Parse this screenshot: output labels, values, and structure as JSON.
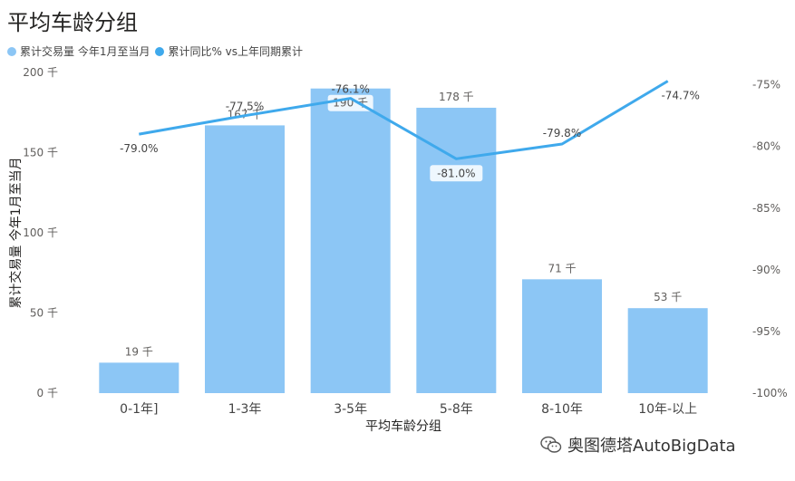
{
  "title": "平均车龄分组",
  "legend": [
    {
      "label": "累计交易量 今年1月至当月",
      "color": "#8cc6f5"
    },
    {
      "label": "累计同比% vs上年同期累计",
      "color": "#3fa9ec"
    }
  ],
  "watermark": "奥图德塔AutoBigData",
  "chart_data": {
    "type": "bar",
    "title": "平均车龄分组",
    "categories": [
      "0-1年]",
      "1-3年",
      "3-5年",
      "5-8年",
      "8-10年",
      "10年-以上"
    ],
    "xlabel": "平均车龄分组",
    "ylabel": "累计交易量 今年1月至当月",
    "ylim": [
      0,
      200
    ],
    "y_ticks": [
      "0 千",
      "50 千",
      "100 千",
      "150 千",
      "200 千"
    ],
    "y2lim": [
      -100,
      -74
    ],
    "y2_ticks": [
      "-100%",
      "-95%",
      "-90%",
      "-85%",
      "-80%",
      "-75%"
    ],
    "grid": false,
    "legend_position": "top-left",
    "series": [
      {
        "name": "累计交易量 今年1月至当月",
        "type": "bar",
        "values": [
          19,
          167,
          190,
          178,
          71,
          53
        ],
        "labels": [
          "19 千",
          "167 千",
          "190 千",
          "178 千",
          "71 千",
          "53 千"
        ],
        "color": "#8cc6f5"
      },
      {
        "name": "累计同比% vs上年同期累计",
        "type": "line",
        "axis": "right",
        "values": [
          -79.0,
          -77.5,
          -76.1,
          -81.0,
          -79.8,
          -74.7
        ],
        "labels": [
          "-79.0%",
          "-77.5%",
          "-76.1%",
          "-81.0%",
          "-79.8%",
          "-74.7%"
        ],
        "color": "#3fa9ec"
      }
    ]
  }
}
